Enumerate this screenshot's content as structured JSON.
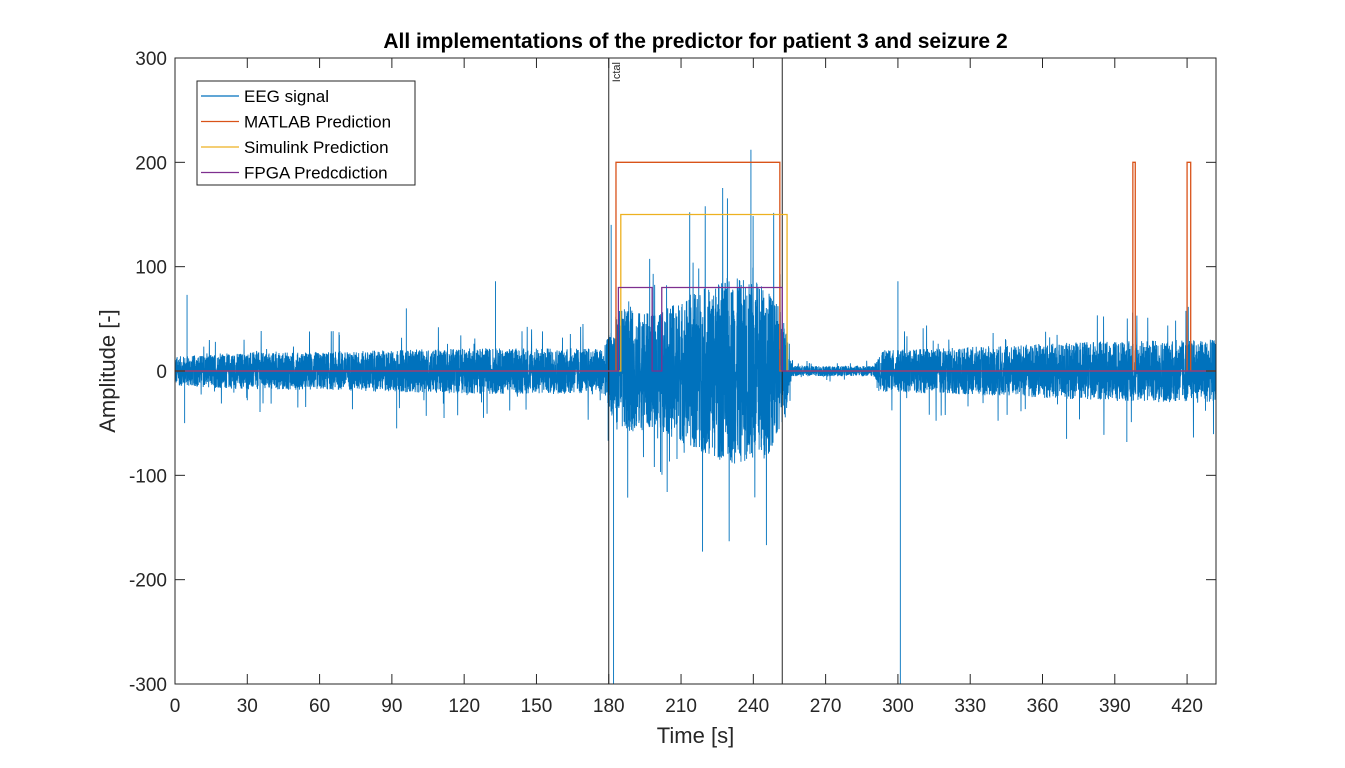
{
  "chart_data": {
    "type": "line",
    "title": "All implementations of the predictor for patient 3 and seizure 2",
    "xlabel": "Time [s]",
    "ylabel": "Amplitude [-]",
    "xlim": [
      0,
      432
    ],
    "ylim": [
      -300,
      300
    ],
    "xticks": [
      0,
      30,
      60,
      90,
      120,
      150,
      180,
      210,
      240,
      270,
      300,
      330,
      360,
      390,
      420
    ],
    "yticks": [
      -300,
      -200,
      -100,
      0,
      100,
      200,
      300
    ],
    "grid": false,
    "legend_position": "top-left",
    "annotations": [
      {
        "text": "Ictal",
        "x": 183
      }
    ],
    "vertical_lines": [
      180,
      252
    ],
    "series": [
      {
        "name": "EEG signal",
        "color": "#0072BD",
        "style": "dense noisy signal",
        "envelope": [
          {
            "x": 0,
            "amp": 14
          },
          {
            "x": 30,
            "amp": 18
          },
          {
            "x": 60,
            "amp": 18
          },
          {
            "x": 90,
            "amp": 20
          },
          {
            "x": 120,
            "amp": 22
          },
          {
            "x": 150,
            "amp": 22
          },
          {
            "x": 178,
            "amp": 22
          },
          {
            "x": 184,
            "amp": 60
          },
          {
            "x": 200,
            "amp": 55
          },
          {
            "x": 215,
            "amp": 75
          },
          {
            "x": 230,
            "amp": 90
          },
          {
            "x": 245,
            "amp": 85
          },
          {
            "x": 253,
            "amp": 50
          },
          {
            "x": 256,
            "amp": 5
          },
          {
            "x": 290,
            "amp": 5
          },
          {
            "x": 294,
            "amp": 20
          },
          {
            "x": 320,
            "amp": 22
          },
          {
            "x": 350,
            "amp": 25
          },
          {
            "x": 380,
            "amp": 28
          },
          {
            "x": 410,
            "amp": 30
          },
          {
            "x": 432,
            "amp": 30
          }
        ],
        "spikes": [
          {
            "x": 5,
            "y": 73
          },
          {
            "x": 4,
            "y": -50
          },
          {
            "x": 96,
            "y": 60
          },
          {
            "x": 133,
            "y": 86
          },
          {
            "x": 92,
            "y": -55
          },
          {
            "x": 181,
            "y": 140
          },
          {
            "x": 182,
            "y": -300
          },
          {
            "x": 239,
            "y": 212
          },
          {
            "x": 300,
            "y": 86
          },
          {
            "x": 301,
            "y": -300
          },
          {
            "x": 420,
            "y": 80
          },
          {
            "x": 395,
            "y": -68
          },
          {
            "x": 370,
            "y": -65
          }
        ]
      },
      {
        "name": "MATLAB Prediction",
        "color": "#D95319",
        "x": [
          0,
          183,
          183,
          251,
          251,
          397.5,
          397.5,
          398.5,
          398.5,
          420,
          420,
          421.5,
          421.5,
          432
        ],
        "y": [
          0,
          0,
          200,
          200,
          0,
          0,
          200,
          200,
          0,
          0,
          200,
          200,
          0,
          0
        ]
      },
      {
        "name": "Simulink Prediction",
        "color": "#EDB120",
        "x": [
          0,
          185,
          185,
          254,
          254,
          432
        ],
        "y": [
          0,
          0,
          150,
          150,
          0,
          0
        ]
      },
      {
        "name": "FPGA Predcdiction",
        "color": "#7E2F8E",
        "x": [
          0,
          184,
          184,
          198,
          198,
          202,
          202,
          252,
          252,
          432
        ],
        "y": [
          0,
          0,
          80,
          80,
          0,
          0,
          80,
          80,
          0,
          0
        ]
      }
    ]
  }
}
